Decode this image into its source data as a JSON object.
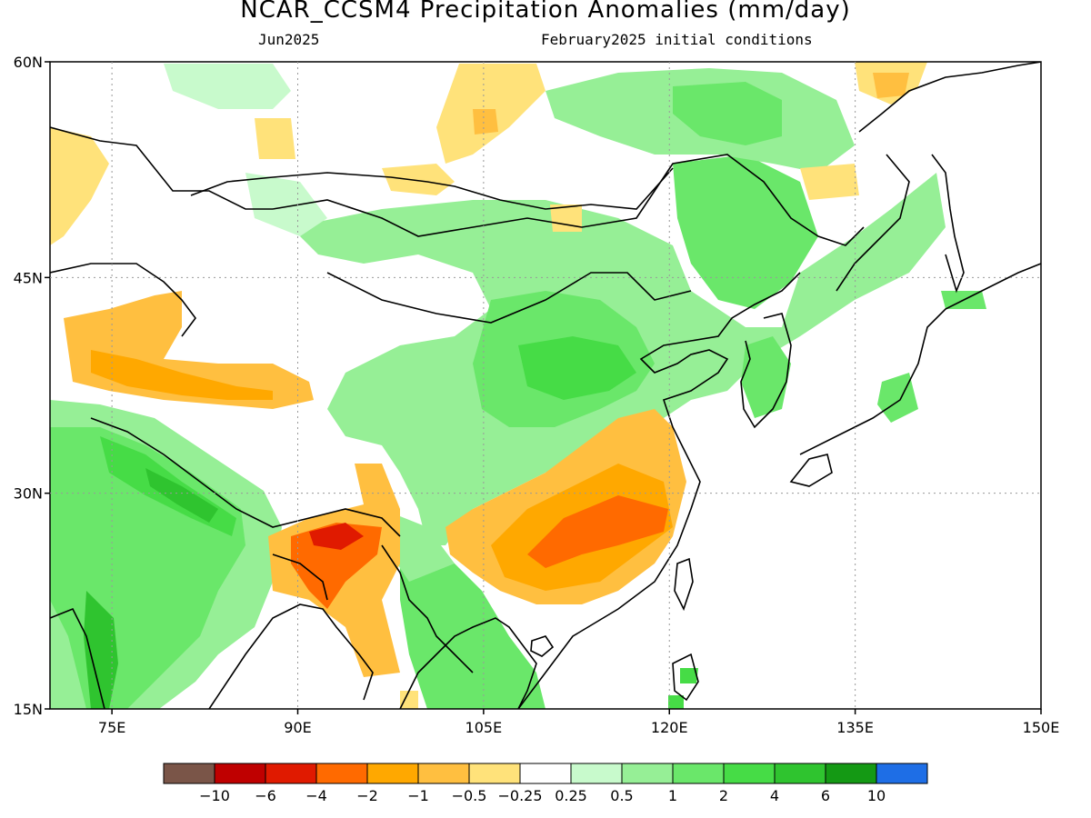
{
  "header": {
    "title": "NCAR_CCSM4 Precipitation Anomalies (mm/day)",
    "month": "Jun2025",
    "init": "February2025 initial conditions"
  },
  "axes": {
    "lat_labels": [
      "60N",
      "45N",
      "30N",
      "15N"
    ],
    "lon_labels": [
      "75E",
      "90E",
      "105E",
      "120E",
      "135E",
      "150E"
    ]
  },
  "colorbar": {
    "colors": [
      "#7a5548",
      "#bf0000",
      "#e01a00",
      "#ff6a00",
      "#ffa800",
      "#ffbf40",
      "#ffe27a",
      "#ffffff",
      "#c8facc",
      "#96ef96",
      "#6ae76a",
      "#46dc46",
      "#2fc42f",
      "#149914",
      "#1e6ee6"
    ],
    "labels": [
      "-10",
      "-6",
      "-4",
      "-2",
      "-1",
      "-0.5",
      "-0.25",
      "0.25",
      "0.5",
      "1",
      "2",
      "4",
      "6",
      "10"
    ]
  },
  "palette": {
    "dry_light": "#ffe27a",
    "dry_med": "#ffbf40",
    "dry_orange": "#ffa800",
    "dry_strong": "#ff6a00",
    "dry_red": "#e01a00",
    "wet_light": "#c8facc",
    "wet_med": "#96ef96",
    "wet_green": "#6ae76a",
    "wet_bright": "#46dc46",
    "wet_dark": "#2fc42f",
    "wet_darker": "#149914"
  }
}
